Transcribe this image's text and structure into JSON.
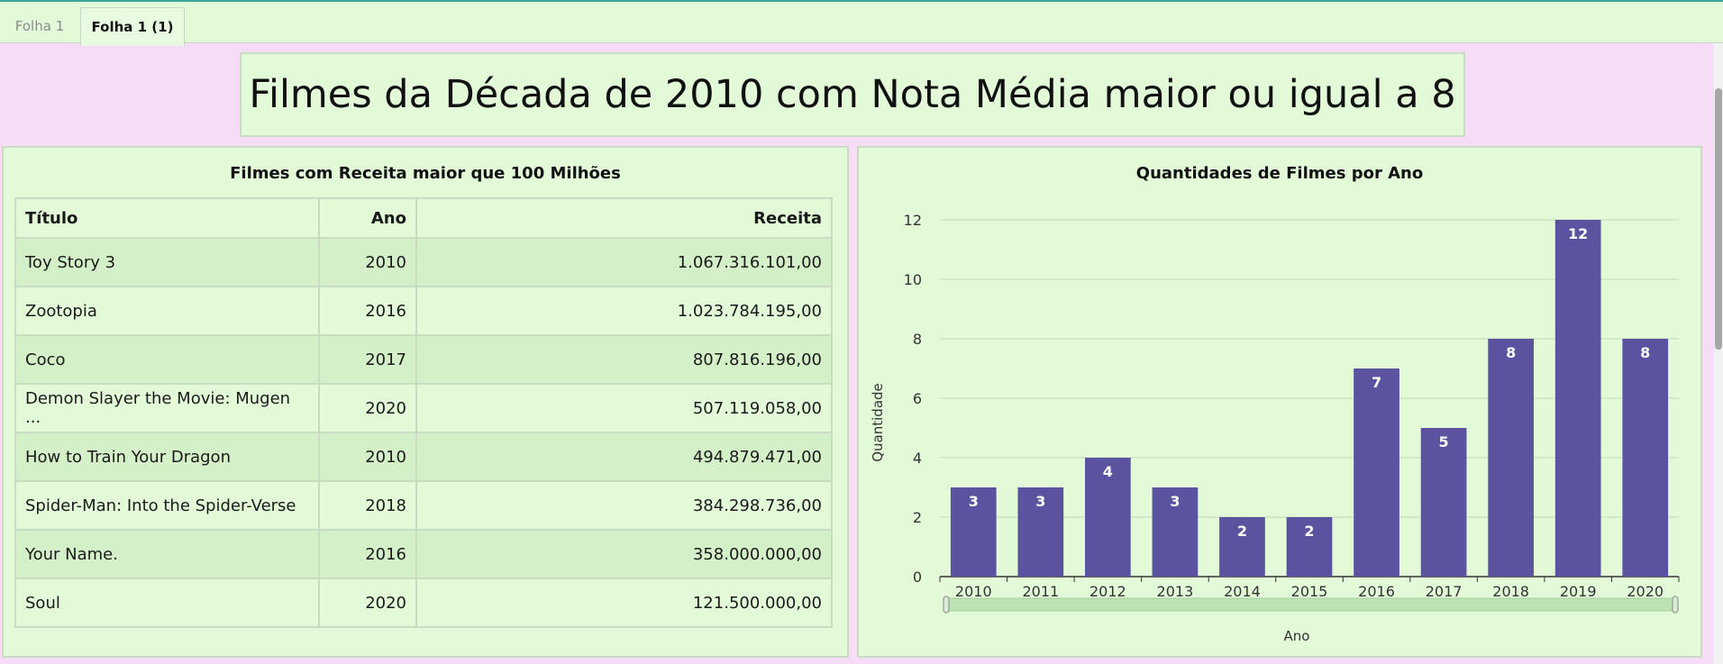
{
  "tabs": [
    {
      "label": "Folha 1"
    },
    {
      "label": "Folha 1 (1)"
    }
  ],
  "page_title": "Filmes da Década de 2010 com Nota Média maior ou igual a 8",
  "table_panel": {
    "title": "Filmes com Receita maior que 100 Milhões",
    "headers": {
      "titulo": "Título",
      "ano": "Ano",
      "receita": "Receita"
    },
    "rows": [
      {
        "titulo": "Toy Story 3",
        "ano": "2010",
        "receita": "1.067.316.101,00"
      },
      {
        "titulo": "Zootopia",
        "ano": "2016",
        "receita": "1.023.784.195,00"
      },
      {
        "titulo": "Coco",
        "ano": "2017",
        "receita": "807.816.196,00"
      },
      {
        "titulo": "Demon Slayer the Movie: Mugen ...",
        "ano": "2020",
        "receita": "507.119.058,00"
      },
      {
        "titulo": "How to Train Your Dragon",
        "ano": "2010",
        "receita": "494.879.471,00"
      },
      {
        "titulo": "Spider-Man: Into the Spider-Verse",
        "ano": "2018",
        "receita": "384.298.736,00"
      },
      {
        "titulo": "Your Name.",
        "ano": "2016",
        "receita": "358.000.000,00"
      },
      {
        "titulo": "Soul",
        "ano": "2020",
        "receita": "121.500.000,00"
      }
    ]
  },
  "chart_panel": {
    "title": "Quantidades de Filmes por Ano"
  },
  "chart_data": {
    "type": "bar",
    "title": "Quantidades de Filmes por Ano",
    "xlabel": "Ano",
    "ylabel": "Quantidade",
    "categories": [
      "2010",
      "2011",
      "2012",
      "2013",
      "2014",
      "2015",
      "2016",
      "2017",
      "2018",
      "2019",
      "2020"
    ],
    "values": [
      3,
      3,
      4,
      3,
      2,
      2,
      7,
      5,
      8,
      12,
      8
    ],
    "ylim": [
      0,
      12
    ],
    "yticks": [
      "0",
      "2",
      "4",
      "6",
      "8",
      "10",
      "12"
    ],
    "grid": true,
    "data_labels": true,
    "bar_color": "#5b52a0",
    "label_color": "#ffffff"
  },
  "colors": {
    "page_bg": "#f6dcf6",
    "panel_bg": "#e2fad8",
    "tab_accent": "#3aa69a"
  }
}
